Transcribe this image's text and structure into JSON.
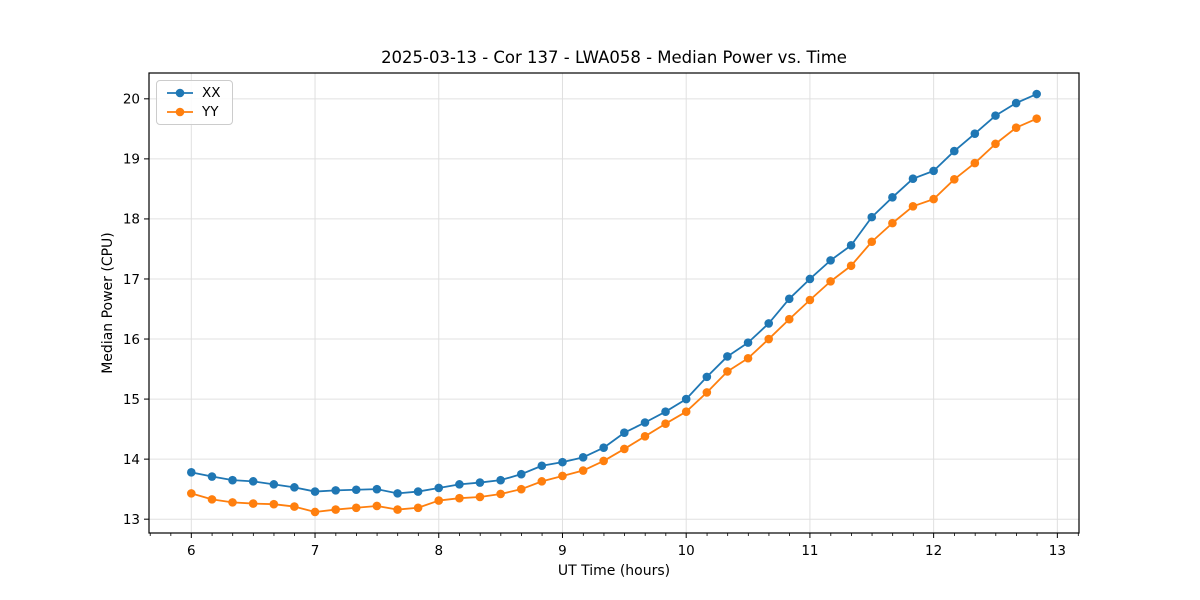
{
  "chart_data": {
    "type": "line",
    "title": "2025-03-13 - Cor 137 - LWA058 - Median Power vs. Time",
    "xlabel": "UT Time (hours)",
    "ylabel": "Median Power (CPU)",
    "xlim": [
      5.658,
      13.175
    ],
    "ylim": [
      12.77,
      20.43
    ],
    "xticks": [
      6,
      7,
      8,
      9,
      10,
      11,
      12,
      13
    ],
    "yticks": [
      13,
      14,
      15,
      16,
      17,
      18,
      19,
      20
    ],
    "x_minor_step": 0.1667,
    "grid": true,
    "legend_position": "upper-left",
    "marker": "o",
    "x": [
      6.0,
      6.167,
      6.333,
      6.5,
      6.667,
      6.833,
      7.0,
      7.167,
      7.333,
      7.5,
      7.667,
      7.833,
      8.0,
      8.167,
      8.333,
      8.5,
      8.667,
      8.833,
      9.0,
      9.167,
      9.333,
      9.5,
      9.667,
      9.833,
      10.0,
      10.167,
      10.333,
      10.5,
      10.667,
      10.833,
      11.0,
      11.167,
      11.333,
      11.5,
      11.667,
      11.833,
      12.0,
      12.167,
      12.333,
      12.5,
      12.667,
      12.833
    ],
    "series": [
      {
        "name": "XX",
        "color": "#1f77b4",
        "values": [
          13.78,
          13.71,
          13.65,
          13.63,
          13.58,
          13.53,
          13.46,
          13.48,
          13.49,
          13.5,
          13.43,
          13.46,
          13.52,
          13.58,
          13.61,
          13.65,
          13.75,
          13.89,
          13.95,
          14.03,
          14.19,
          14.44,
          14.61,
          14.79,
          15.0,
          15.37,
          15.71,
          15.94,
          16.26,
          16.67,
          17.0,
          17.31,
          17.56,
          18.03,
          18.36,
          18.67,
          18.8,
          19.13,
          19.42,
          19.72,
          19.93,
          20.08
        ]
      },
      {
        "name": "YY",
        "color": "#ff7f0e",
        "values": [
          13.43,
          13.33,
          13.28,
          13.26,
          13.25,
          13.21,
          13.12,
          13.16,
          13.19,
          13.22,
          13.16,
          13.19,
          13.31,
          13.35,
          13.37,
          13.42,
          13.5,
          13.63,
          13.72,
          13.81,
          13.97,
          14.17,
          14.38,
          14.59,
          14.79,
          15.11,
          15.46,
          15.68,
          16.0,
          16.33,
          16.65,
          16.96,
          17.22,
          17.62,
          17.93,
          18.21,
          18.33,
          18.66,
          18.93,
          19.25,
          19.52,
          19.67
        ]
      }
    ],
    "style": {
      "grid_color": "#e0e0e0",
      "spine_color": "#000000",
      "tick_color": "#000000",
      "background": "#ffffff"
    }
  }
}
